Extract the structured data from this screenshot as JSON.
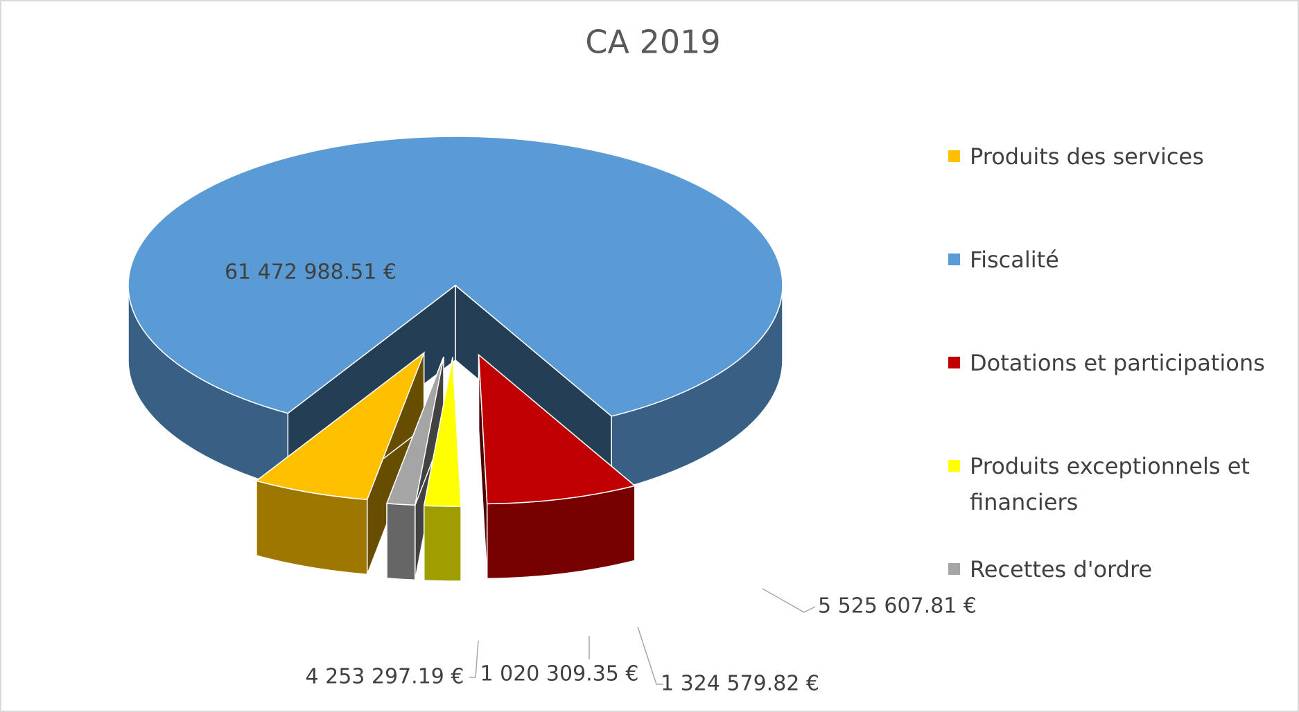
{
  "chart_data": {
    "type": "pie3d",
    "title": "CA 2019",
    "categories": [
      "Produits des services",
      "Fiscalité",
      "Dotations et participations",
      "Produits exceptionnels et financiers",
      "Recettes d'ordre"
    ],
    "values": [
      4253297.19,
      61472988.51,
      5525607.81,
      1324579.82,
      1020309.35
    ],
    "value_labels": [
      "4 253 297.19 €",
      "61 472 988.51 €",
      "5 525 607.81 €",
      "1 324 579.82 €",
      "1 020 309.35 €"
    ],
    "colors": [
      "#ffc000",
      "#5b9bd5",
      "#c00000",
      "#ffff00",
      "#a5a5a5"
    ],
    "legend": "right"
  }
}
